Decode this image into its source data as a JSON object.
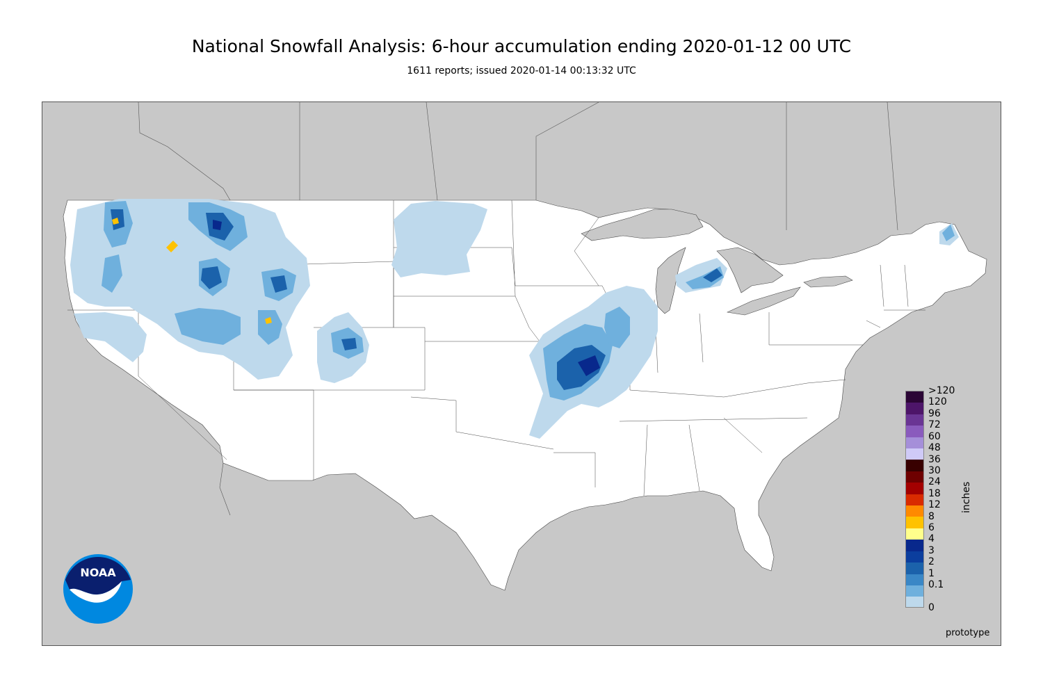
{
  "title": "National Snowfall Analysis: 6-hour accumulation ending 2020-01-12 00 UTC",
  "subtitle": "1611 reports; issued 2020-01-14 00:13:32 UTC",
  "legend": {
    "unit": "inches",
    "items": [
      {
        "label": ">120",
        "color": "#2b0535"
      },
      {
        "label": "120",
        "color": "#4d1569"
      },
      {
        "label": "96",
        "color": "#6a3594"
      },
      {
        "label": "72",
        "color": "#8a5bbd"
      },
      {
        "label": "60",
        "color": "#a58fd9"
      },
      {
        "label": "48",
        "color": "#cfcaf7"
      },
      {
        "label": "36",
        "color": "#380000"
      },
      {
        "label": "30",
        "color": "#6e0000"
      },
      {
        "label": "24",
        "color": "#a30000"
      },
      {
        "label": "18",
        "color": "#d92b00"
      },
      {
        "label": "12",
        "color": "#ff8a00"
      },
      {
        "label": "8",
        "color": "#ffc200"
      },
      {
        "label": "6",
        "color": "#ffff8c"
      },
      {
        "label": "4",
        "color": "#08288c"
      },
      {
        "label": "3",
        "color": "#0b3e9e"
      },
      {
        "label": "2",
        "color": "#1b62ab"
      },
      {
        "label": "1",
        "color": "#3a87c6"
      },
      {
        "label": "0.1",
        "color": "#6fb0dd"
      },
      {
        "label": "",
        "color": "#bed9ec"
      },
      {
        "label": "0",
        "color": "#e4eef7"
      }
    ],
    "zero_color": "#ffffff"
  },
  "logo": {
    "text": "NOAA",
    "icon": "noaa-logo-icon",
    "colors": {
      "dark": "#0a1f6e",
      "light": "#0088e0"
    }
  },
  "footer": {
    "label": "prototype"
  },
  "map": {
    "land_color": "#ffffff",
    "background_color": "#c8c8c8",
    "snow_light": "#bed9ec",
    "snow_mid": "#6fb0dd",
    "snow_heavy": "#1b62ab",
    "snow_max": "#08288c",
    "snow_yellow": "#ffc200"
  }
}
